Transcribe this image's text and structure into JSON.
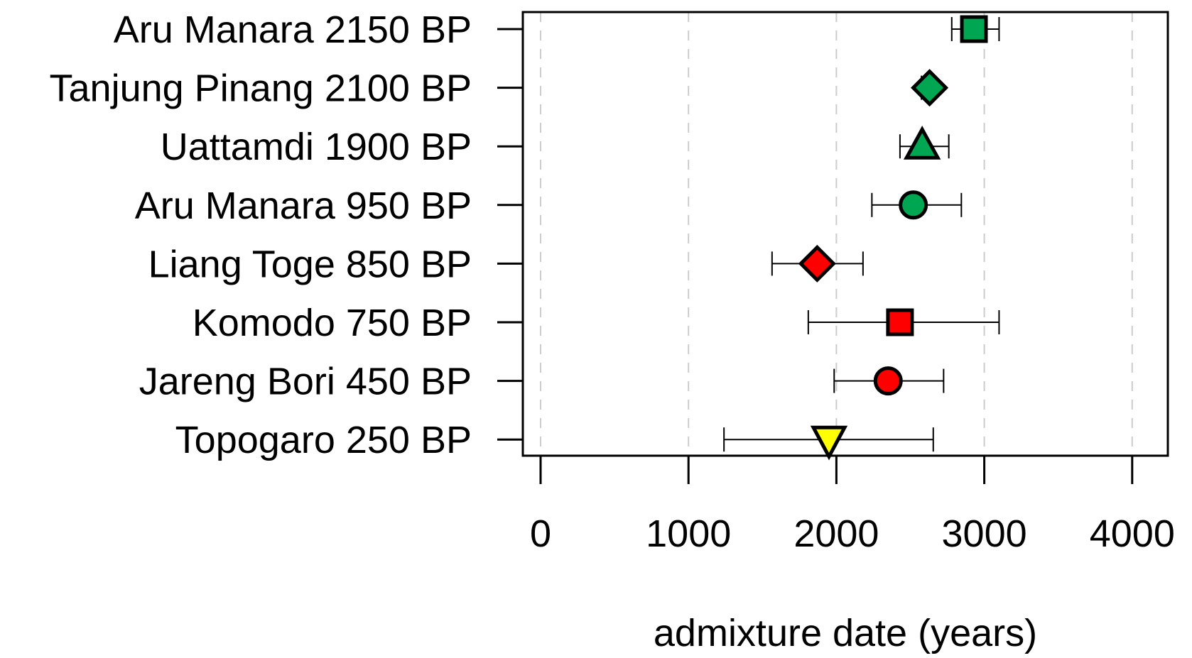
{
  "chart_data": {
    "type": "scatter",
    "title": "",
    "xlabel": "admixture date (years)",
    "ylabel": "",
    "xlim": [
      -160,
      4160
    ],
    "xticks": [
      0,
      1000,
      2000,
      3000,
      4000
    ],
    "xtick_labels": [
      "0",
      "1000",
      "2000",
      "3000",
      "4000"
    ],
    "grid": "vertical dashed",
    "colors": {
      "green": "#00a651",
      "red": "#ff0000",
      "yellow": "#ffff00"
    },
    "series": [
      {
        "name": "Aru Manara 2150 BP",
        "value": 2930,
        "lower": 2780,
        "upper": 3100,
        "shape": "square",
        "color": "#00a651"
      },
      {
        "name": "Tanjung Pinang 2100 BP",
        "value": 2630,
        "lower": 2575,
        "upper": 2670,
        "shape": "diamond",
        "color": "#00a651"
      },
      {
        "name": "Uattamdi 1900 BP",
        "value": 2580,
        "lower": 2430,
        "upper": 2760,
        "shape": "triangle-up",
        "color": "#00a651"
      },
      {
        "name": "Aru Manara 950 BP",
        "value": 2520,
        "lower": 2240,
        "upper": 2845,
        "shape": "circle",
        "color": "#00a651"
      },
      {
        "name": "Liang Toge 850 BP",
        "value": 1870,
        "lower": 1565,
        "upper": 2180,
        "shape": "diamond",
        "color": "#ff0000"
      },
      {
        "name": "Komodo 750 BP",
        "value": 2430,
        "lower": 1810,
        "upper": 3100,
        "shape": "square",
        "color": "#ff0000"
      },
      {
        "name": "Jareng Bori 450 BP",
        "value": 2350,
        "lower": 1985,
        "upper": 2725,
        "shape": "circle",
        "color": "#ff0000"
      },
      {
        "name": "Topogaro 250 BP",
        "value": 1950,
        "lower": 1240,
        "upper": 2655,
        "shape": "triangle-down",
        "color": "#ffff00"
      }
    ]
  }
}
